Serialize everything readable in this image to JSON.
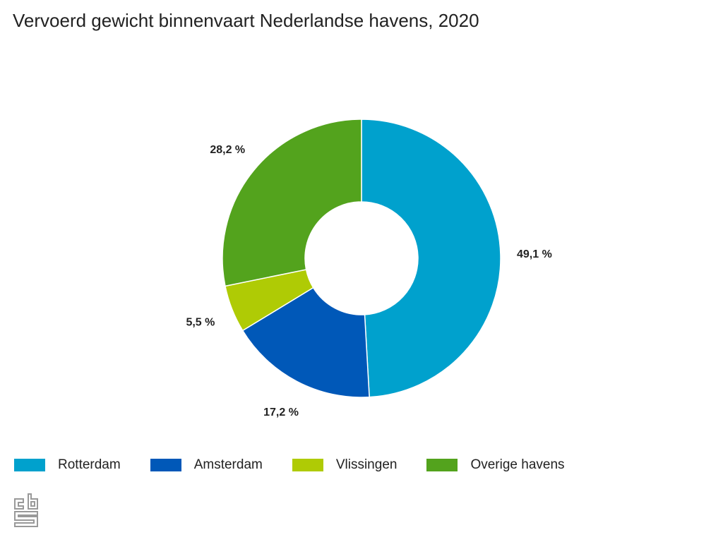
{
  "chart_data": {
    "type": "pie",
    "donut": true,
    "title": "Vervoerd gewicht binnenvaart Nederlandse havens, 2020",
    "categories": [
      "Rotterdam",
      "Amsterdam",
      "Vlissingen",
      "Overige havens"
    ],
    "values": [
      49.1,
      17.2,
      5.5,
      28.2
    ],
    "labels": [
      "49,1 %",
      "17,2 %",
      "5,5 %",
      "28,2 %"
    ],
    "colors": [
      "#00a1cd",
      "#0058b8",
      "#afcb05",
      "#53a31d"
    ],
    "legend": "bottom-left"
  },
  "logo": "cbs"
}
